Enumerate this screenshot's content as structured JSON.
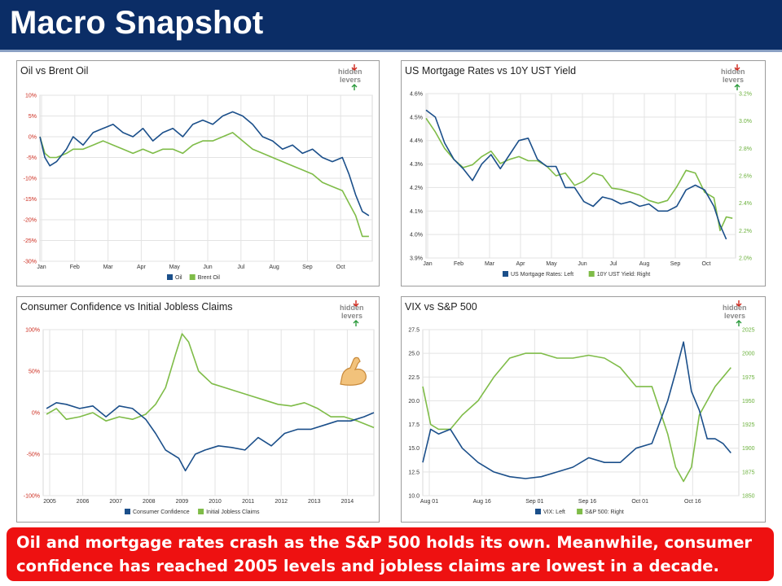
{
  "header": {
    "title": "Macro Snapshot"
  },
  "caption": "Oil and mortgage rates crash as the S&P 500 holds its own. Meanwhile, consumer confidence has reached 2005 levels and jobless claims are lowest in a decade.",
  "logo": {
    "line1": "hidden",
    "line2": "levers"
  },
  "colors": {
    "navy": "#1b4f8a",
    "green": "#7fbc48",
    "header": "#0b2d66",
    "caption": "#ee1111"
  },
  "chart_data": [
    {
      "type": "line",
      "title": "Oil vs Brent Oil",
      "categories": [
        "Jan",
        "Feb",
        "Mar",
        "Apr",
        "May",
        "Jun",
        "Jul",
        "Aug",
        "Sep",
        "Oct"
      ],
      "yticks": [
        "10%",
        "5%",
        "0%",
        "-5%",
        "-10%",
        "-15%",
        "-20%",
        "-25%",
        "-30%"
      ],
      "ylim": [
        -30,
        10
      ],
      "xlim": [
        0,
        10
      ],
      "series": [
        {
          "name": "Oil",
          "color": "#1b4f8a",
          "x": [
            0,
            0.15,
            0.3,
            0.5,
            0.8,
            1.0,
            1.3,
            1.6,
            1.9,
            2.2,
            2.5,
            2.8,
            3.1,
            3.4,
            3.7,
            4.0,
            4.3,
            4.6,
            4.9,
            5.2,
            5.5,
            5.8,
            6.1,
            6.4,
            6.7,
            7.0,
            7.3,
            7.6,
            7.9,
            8.2,
            8.5,
            8.8,
            9.1,
            9.3,
            9.5,
            9.7,
            9.9
          ],
          "values": [
            0,
            -5,
            -7,
            -6,
            -3,
            0,
            -2,
            1,
            2,
            3,
            1,
            0,
            2,
            -1,
            1,
            2,
            0,
            3,
            4,
            3,
            5,
            6,
            5,
            3,
            0,
            -1,
            -3,
            -2,
            -4,
            -3,
            -5,
            -6,
            -5,
            -9,
            -14,
            -18,
            -19
          ]
        },
        {
          "name": "Brent Oil",
          "color": "#7fbc48",
          "x": [
            0,
            0.15,
            0.3,
            0.5,
            0.8,
            1.0,
            1.3,
            1.6,
            1.9,
            2.2,
            2.5,
            2.8,
            3.1,
            3.4,
            3.7,
            4.0,
            4.3,
            4.6,
            4.9,
            5.2,
            5.5,
            5.8,
            6.1,
            6.4,
            6.7,
            7.0,
            7.3,
            7.6,
            7.9,
            8.2,
            8.5,
            8.8,
            9.1,
            9.3,
            9.5,
            9.7,
            9.9
          ],
          "values": [
            0,
            -4,
            -5,
            -5,
            -4,
            -3,
            -3,
            -2,
            -1,
            -2,
            -3,
            -4,
            -3,
            -4,
            -3,
            -3,
            -4,
            -2,
            -1,
            -1,
            0,
            1,
            -1,
            -3,
            -4,
            -5,
            -6,
            -7,
            -8,
            -9,
            -11,
            -12,
            -13,
            -16,
            -19,
            -24,
            -24
          ]
        }
      ]
    },
    {
      "type": "line",
      "title": "US Mortgage Rates vs 10Y UST Yield",
      "categories": [
        "Jan",
        "Feb",
        "Mar",
        "Apr",
        "May",
        "Jun",
        "Jul",
        "Aug",
        "Sep",
        "Oct"
      ],
      "yticks_left": [
        "4.6%",
        "4.5%",
        "4.4%",
        "4.3%",
        "4.2%",
        "4.1%",
        "4.0%",
        "3.9%"
      ],
      "yticks_right": [
        "3.2%",
        "3.0%",
        "2.8%",
        "2.6%",
        "2.4%",
        "2.2%",
        "2.0%"
      ],
      "ylim_left": [
        3.9,
        4.6
      ],
      "ylim_right": [
        2.0,
        3.2
      ],
      "xlim": [
        0,
        10
      ],
      "series": [
        {
          "name": "US Mortgage Rates: Left",
          "axis": "left",
          "color": "#1b4f8a",
          "x": [
            0,
            0.3,
            0.6,
            0.9,
            1.2,
            1.5,
            1.8,
            2.1,
            2.4,
            2.7,
            3.0,
            3.3,
            3.6,
            3.9,
            4.2,
            4.5,
            4.8,
            5.1,
            5.4,
            5.7,
            6.0,
            6.3,
            6.6,
            6.9,
            7.2,
            7.5,
            7.8,
            8.1,
            8.4,
            8.7,
            9.0,
            9.3,
            9.5,
            9.7
          ],
          "values": [
            4.53,
            4.5,
            4.39,
            4.32,
            4.28,
            4.23,
            4.3,
            4.34,
            4.28,
            4.34,
            4.4,
            4.41,
            4.32,
            4.29,
            4.29,
            4.2,
            4.2,
            4.14,
            4.12,
            4.16,
            4.15,
            4.13,
            4.14,
            4.12,
            4.13,
            4.1,
            4.1,
            4.12,
            4.19,
            4.21,
            4.19,
            4.12,
            4.04,
            3.98
          ]
        },
        {
          "name": "10Y UST Yield: Right",
          "axis": "right",
          "color": "#7fbc48",
          "x": [
            0,
            0.3,
            0.6,
            0.9,
            1.2,
            1.5,
            1.8,
            2.1,
            2.4,
            2.7,
            3.0,
            3.3,
            3.6,
            3.9,
            4.2,
            4.5,
            4.8,
            5.1,
            5.4,
            5.7,
            6.0,
            6.3,
            6.6,
            6.9,
            7.2,
            7.5,
            7.8,
            8.1,
            8.4,
            8.7,
            9.0,
            9.3,
            9.5,
            9.7,
            9.9
          ],
          "values": [
            3.02,
            2.92,
            2.8,
            2.72,
            2.66,
            2.68,
            2.74,
            2.78,
            2.69,
            2.72,
            2.74,
            2.71,
            2.71,
            2.67,
            2.6,
            2.62,
            2.53,
            2.56,
            2.62,
            2.6,
            2.51,
            2.5,
            2.48,
            2.46,
            2.42,
            2.4,
            2.42,
            2.52,
            2.64,
            2.62,
            2.48,
            2.44,
            2.2,
            2.3,
            2.29
          ]
        }
      ]
    },
    {
      "type": "line",
      "title": "Consumer Confidence vs Initial Jobless Claims",
      "categories": [
        "2005",
        "2006",
        "2007",
        "2008",
        "2009",
        "2010",
        "2011",
        "2012",
        "2013",
        "2014"
      ],
      "yticks": [
        "100%",
        "50%",
        "0%",
        "-50%",
        "-100%"
      ],
      "ylim": [
        -100,
        100
      ],
      "xlim": [
        2004.9,
        2014.9
      ],
      "series": [
        {
          "name": "Consumer Confidence",
          "color": "#1b4f8a",
          "x": [
            2005,
            2005.3,
            2005.6,
            2006,
            2006.4,
            2006.8,
            2007.2,
            2007.6,
            2008,
            2008.3,
            2008.6,
            2009,
            2009.2,
            2009.5,
            2009.8,
            2010.2,
            2010.6,
            2011,
            2011.4,
            2011.8,
            2012.2,
            2012.6,
            2013,
            2013.4,
            2013.8,
            2014.2,
            2014.6,
            2014.9
          ],
          "values": [
            5,
            12,
            10,
            5,
            8,
            -5,
            8,
            5,
            -8,
            -25,
            -45,
            -55,
            -70,
            -50,
            -45,
            -40,
            -42,
            -45,
            -30,
            -40,
            -25,
            -20,
            -20,
            -15,
            -10,
            -10,
            -5,
            0
          ]
        },
        {
          "name": "Initial Jobless Claims",
          "color": "#7fbc48",
          "x": [
            2005,
            2005.3,
            2005.6,
            2006,
            2006.4,
            2006.8,
            2007.2,
            2007.6,
            2008,
            2008.3,
            2008.6,
            2008.9,
            2009.1,
            2009.3,
            2009.6,
            2010,
            2010.4,
            2010.8,
            2011.2,
            2011.6,
            2012,
            2012.4,
            2012.8,
            2013.2,
            2013.6,
            2014,
            2014.4,
            2014.9
          ],
          "values": [
            -2,
            5,
            -8,
            -5,
            0,
            -10,
            -5,
            -8,
            -2,
            10,
            30,
            70,
            95,
            85,
            50,
            35,
            30,
            25,
            20,
            15,
            10,
            8,
            12,
            5,
            -5,
            -5,
            -10,
            -18
          ]
        }
      ]
    },
    {
      "type": "line",
      "title": "VIX vs S&P 500",
      "categories": [
        "Aug 01",
        "Aug 16",
        "Sep 01",
        "Sep 16",
        "Oct 01",
        "Oct 16"
      ],
      "yticks_left": [
        "27.5",
        "25.0",
        "22.5",
        "20.0",
        "17.5",
        "15.0",
        "12.5",
        "10.0"
      ],
      "yticks_right": [
        "2025",
        "2000",
        "1975",
        "1950",
        "1925",
        "1900",
        "1875",
        "1850"
      ],
      "ylim_left": [
        10,
        27.5
      ],
      "ylim_right": [
        1850,
        2025
      ],
      "xlim": [
        0,
        80
      ],
      "series": [
        {
          "name": "VIX: Left",
          "axis": "left",
          "color": "#1b4f8a",
          "x": [
            0,
            2,
            4,
            7,
            10,
            14,
            18,
            22,
            26,
            30,
            34,
            38,
            42,
            46,
            50,
            54,
            58,
            62,
            64,
            66,
            68,
            70,
            72,
            74,
            76,
            78
          ],
          "values": [
            13.5,
            17,
            16.5,
            17,
            15,
            13.5,
            12.5,
            12,
            11.8,
            12,
            12.5,
            13,
            14,
            13.5,
            13.5,
            15,
            15.5,
            20,
            23,
            26.2,
            21,
            19,
            16,
            16,
            15.5,
            14.5
          ]
        },
        {
          "name": "S&P 500: Right",
          "axis": "right",
          "color": "#7fbc48",
          "x": [
            0,
            2,
            4,
            7,
            10,
            14,
            18,
            22,
            26,
            30,
            34,
            38,
            42,
            46,
            50,
            54,
            58,
            62,
            64,
            66,
            68,
            70,
            72,
            74,
            76,
            78
          ],
          "values": [
            1965,
            1925,
            1920,
            1920,
            1935,
            1950,
            1975,
            1995,
            2000,
            2000,
            1995,
            1995,
            1998,
            1995,
            1985,
            1965,
            1965,
            1915,
            1880,
            1865,
            1880,
            1935,
            1950,
            1965,
            1975,
            1985
          ]
        }
      ]
    }
  ]
}
